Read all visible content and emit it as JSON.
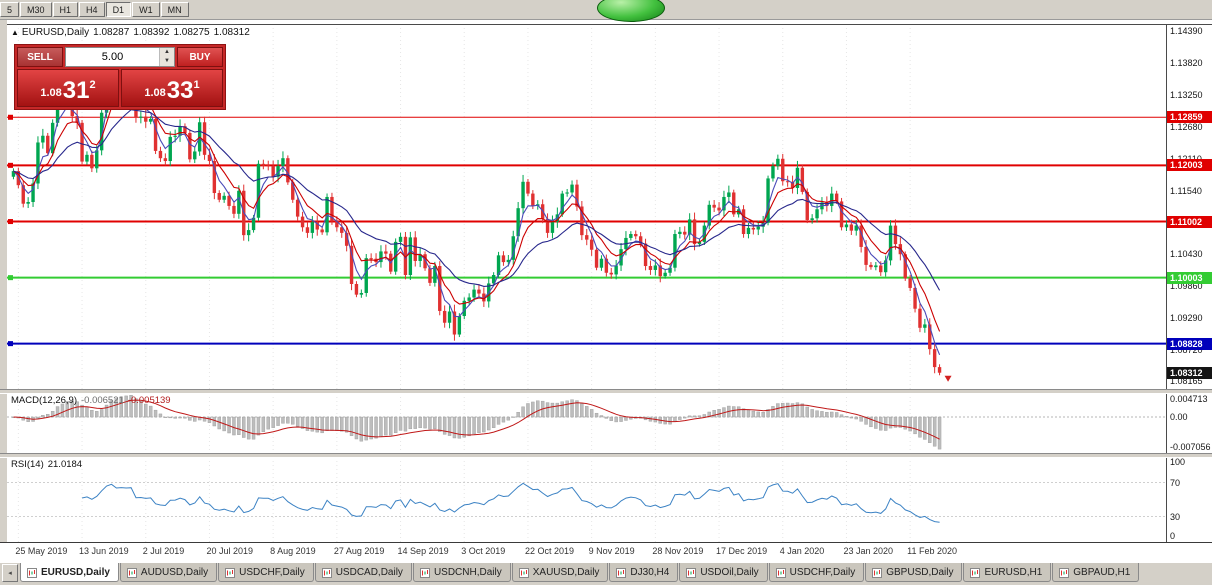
{
  "toolbar": {
    "timeframes": [
      "5",
      "M30",
      "H1",
      "H4",
      "D1",
      "W1",
      "MN"
    ],
    "active": "D1"
  },
  "chart": {
    "header": {
      "symbol": "EURUSD,Daily",
      "open": "1.08287",
      "high": "1.08392",
      "low": "1.08275",
      "close": "1.08312"
    },
    "trade_panel": {
      "sell_label": "SELL",
      "buy_label": "BUY",
      "volume": "5.00",
      "bid": {
        "prefix": "1.08",
        "pips": "31",
        "pipette": "2"
      },
      "ask": {
        "prefix": "1.08",
        "pips": "33",
        "pipette": "1"
      }
    }
  },
  "chart_data": {
    "type": "candlestick",
    "symbol": "EURUSD",
    "timeframe": "Daily",
    "ylim": [
      1.0802,
      1.1452
    ],
    "y_axis_labels": [
      "1.14390",
      "1.13820",
      "1.13250",
      "1.12680",
      "1.12110",
      "1.11540",
      "1.10970",
      "1.10430",
      "1.09860",
      "1.09290",
      "1.08720",
      "1.08165"
    ],
    "hlines": [
      {
        "value": 1.12859,
        "label": "1.12859",
        "color": "#e00000",
        "width": 1
      },
      {
        "value": 1.12003,
        "label": "1.12003",
        "color": "#e00000",
        "width": 2
      },
      {
        "value": 1.11002,
        "label": "1.11002",
        "color": "#e00000",
        "width": 2
      },
      {
        "value": 1.10003,
        "label": "1.10003",
        "color": "#33cc33",
        "width": 2
      },
      {
        "value": 1.08828,
        "label": "1.08828",
        "color": "#0000bb",
        "width": 2
      }
    ],
    "current_price": {
      "value": 1.08312,
      "label": "1.08312",
      "bg": "#141414"
    },
    "tick_dates": [
      "25 May 2019",
      "13 Jun 2019",
      "2 Jul 2019",
      "20 Jul 2019",
      "8 Aug 2019",
      "27 Aug 2019",
      "14 Sep 2019",
      "3 Oct 2019",
      "22 Oct 2019",
      "9 Nov 2019",
      "28 Nov 2019",
      "17 Dec 2019",
      "4 Jan 2020",
      "23 Jan 2020",
      "11 Feb 2020"
    ],
    "closes": [
      1.119,
      1.1165,
      1.1132,
      1.1135,
      1.1168,
      1.1241,
      1.1253,
      1.1222,
      1.1276,
      1.1334,
      1.1312,
      1.1326,
      1.1288,
      1.1276,
      1.1207,
      1.1219,
      1.1195,
      1.1227,
      1.1294,
      1.1369,
      1.1399,
      1.1366,
      1.1373,
      1.1369,
      1.1373,
      1.1285,
      1.1287,
      1.1278,
      1.1283,
      1.1226,
      1.1213,
      1.1208,
      1.1251,
      1.1253,
      1.127,
      1.1258,
      1.1211,
      1.1225,
      1.1277,
      1.1219,
      1.1208,
      1.1151,
      1.1139,
      1.1146,
      1.1128,
      1.1114,
      1.1155,
      1.1076,
      1.1085,
      1.1107,
      1.1203,
      1.12,
      1.1199,
      1.118,
      1.1199,
      1.1213,
      1.117,
      1.1139,
      1.1109,
      1.109,
      1.108,
      1.1099,
      1.1086,
      1.1081,
      1.1144,
      1.1101,
      1.109,
      1.108,
      1.1057,
      1.0989,
      1.097,
      1.0973,
      1.1035,
      1.1034,
      1.1028,
      1.1047,
      1.1043,
      1.1011,
      1.1064,
      1.1073,
      1.1005,
      1.1072,
      1.103,
      1.1042,
      1.1017,
      1.0991,
      1.1021,
      1.0941,
      1.092,
      1.094,
      1.0899,
      1.0932,
      1.0959,
      1.0965,
      1.0979,
      1.0972,
      1.0958,
      1.099,
      1.1005,
      1.104,
      1.1028,
      1.1032,
      1.1074,
      1.1124,
      1.1171,
      1.115,
      1.1128,
      1.1131,
      1.1105,
      1.108,
      1.11,
      1.1113,
      1.115,
      1.1152,
      1.1166,
      1.1127,
      1.1076,
      1.1068,
      1.105,
      1.1018,
      1.1034,
      1.1009,
      1.1006,
      1.1022,
      1.1051,
      1.1071,
      1.1078,
      1.1074,
      1.1061,
      1.1021,
      1.1014,
      1.1022,
      1.1003,
      1.1009,
      1.1018,
      1.1078,
      1.1082,
      1.1077,
      1.1104,
      1.106,
      1.1064,
      1.1093,
      1.113,
      1.1125,
      1.112,
      1.1144,
      1.1152,
      1.1113,
      1.1122,
      1.1078,
      1.1089,
      1.1086,
      1.1091,
      1.1098,
      1.1177,
      1.1199,
      1.1212,
      1.1172,
      1.1171,
      1.116,
      1.1196,
      1.1153,
      1.1103,
      1.1106,
      1.1122,
      1.1134,
      1.1128,
      1.115,
      1.1136,
      1.109,
      1.1095,
      1.1084,
      1.1093,
      1.1055,
      1.1023,
      1.1019,
      1.1022,
      1.101,
      1.1031,
      1.1093,
      1.106,
      1.1042,
      1.0999,
      1.0982,
      1.0945,
      1.0911,
      1.0917,
      1.0873,
      1.0841,
      1.0831
    ],
    "indicators": {
      "mas": [
        {
          "period": 4,
          "color": "#4a4ab8"
        },
        {
          "period": 8,
          "color": "#cc0000"
        },
        {
          "period": 20,
          "color": "#28288c"
        }
      ],
      "macd": {
        "fast": 12,
        "slow": 26,
        "signal": 9,
        "ylim": [
          -0.007056,
          0.004713
        ]
      },
      "rsi": {
        "period": 14,
        "levels": [
          70,
          30
        ],
        "ylim": [
          0,
          100
        ]
      }
    },
    "colors": {
      "up": "#00a650",
      "down": "#e03131",
      "macd_hist": "#bdbdbd",
      "macd_signal": "#c01818",
      "rsi_line": "#3b82c4",
      "grid": "#e6e6e6"
    }
  },
  "macd_panel": {
    "label": "MACD(12,26,9)",
    "value_main": "-0.006521",
    "value_signal": "-0.005139",
    "axis": [
      "0.004713",
      "0.00",
      "-0.007056"
    ]
  },
  "rsi_panel": {
    "label": "RSI(14)",
    "value": "21.0184",
    "axis": [
      "100",
      "70",
      "30",
      "0"
    ]
  },
  "tabs": {
    "active_index": 0,
    "scroll_left": "◂",
    "items": [
      "EURUSD,Daily",
      "AUDUSD,Daily",
      "USDCHF,Daily",
      "USDCAD,Daily",
      "USDCNH,Daily",
      "XAUUSD,Daily",
      "DJ30,H4",
      "USDOil,Daily",
      "USDCHF,Daily",
      "GBPUSD,Daily",
      "EURUSD,H1",
      "GBPAUD,H1"
    ]
  }
}
